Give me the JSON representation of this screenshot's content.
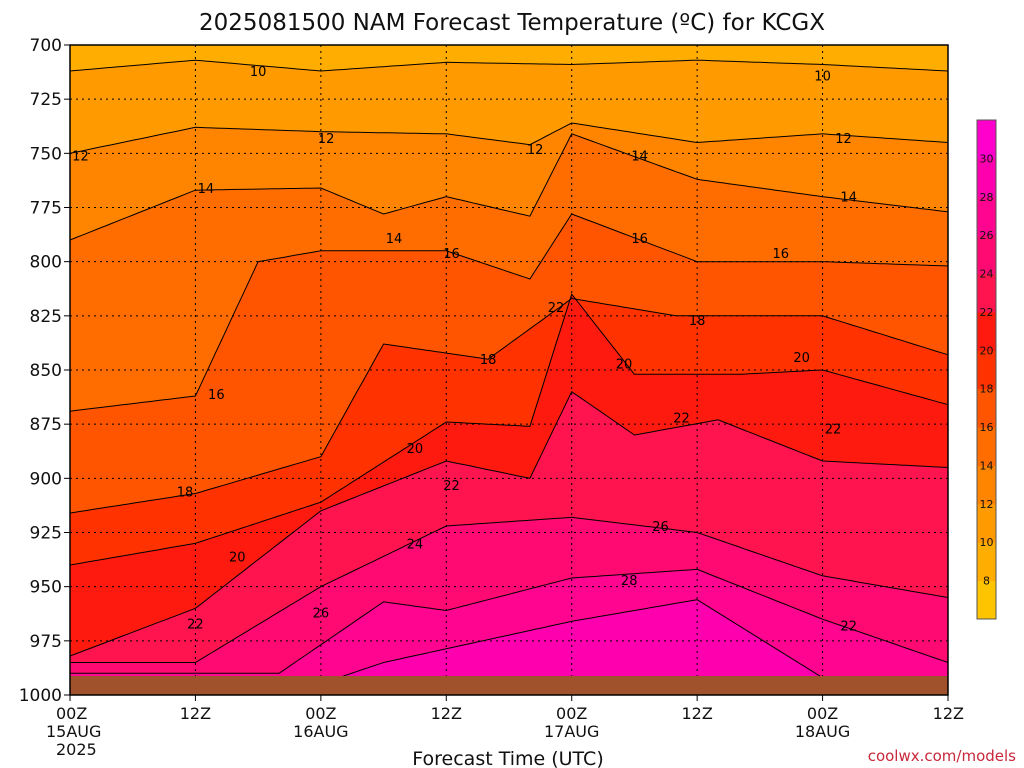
{
  "chart_data": {
    "type": "heatmap",
    "title": "2025081500 NAM Forecast Temperature (ºC) for KCGX",
    "xlabel": "Forecast Time (UTC)",
    "ylabel": "",
    "credit": "coolwx.com/models",
    "y_ticks": [
      "700",
      "725",
      "750",
      "775",
      "800",
      "825",
      "850",
      "875",
      "900",
      "925",
      "950",
      "975",
      "1000"
    ],
    "y_values": [
      700,
      725,
      750,
      775,
      800,
      825,
      850,
      875,
      900,
      925,
      950,
      975,
      1000
    ],
    "ylim": [
      1000,
      700
    ],
    "x_ticks": [
      {
        "time": "00Z",
        "date": "15AUG",
        "year": "2025"
      },
      {
        "time": "12Z",
        "date": "",
        "year": ""
      },
      {
        "time": "00Z",
        "date": "16AUG",
        "year": ""
      },
      {
        "time": "12Z",
        "date": "",
        "year": ""
      },
      {
        "time": "00Z",
        "date": "17AUG",
        "year": ""
      },
      {
        "time": "12Z",
        "date": "",
        "year": ""
      },
      {
        "time": "00Z",
        "date": "18AUG",
        "year": ""
      },
      {
        "time": "12Z",
        "date": "",
        "year": ""
      }
    ],
    "x_hours": [
      0,
      12,
      24,
      36,
      48,
      60,
      72,
      84
    ],
    "xlim": [
      0,
      84
    ],
    "colorbar": {
      "levels": [
        6,
        8,
        10,
        12,
        14,
        16,
        18,
        20,
        22,
        24,
        26,
        28,
        30,
        32
      ],
      "tick_labels": [
        "8",
        "10",
        "12",
        "14",
        "16",
        "18",
        "20",
        "22",
        "24",
        "26",
        "28",
        "30"
      ],
      "colors": [
        "#ffc400",
        "#ffad00",
        "#ff9a00",
        "#ff8400",
        "#ff6c00",
        "#ff5500",
        "#ff3200",
        "#ff1a10",
        "#ff1450",
        "#ff0a72",
        "#ff0590",
        "#ff00ae",
        "#ff00cc"
      ]
    },
    "grid": true,
    "series": [
      {
        "name": "10",
        "values": [
          [
            0,
            712
          ],
          [
            12,
            707
          ],
          [
            24,
            712
          ],
          [
            36,
            708
          ],
          [
            48,
            709
          ],
          [
            60,
            707
          ],
          [
            72,
            709
          ],
          [
            84,
            712
          ]
        ]
      },
      {
        "name": "12",
        "values": [
          [
            0,
            750
          ],
          [
            12,
            738
          ],
          [
            24,
            740
          ],
          [
            36,
            741
          ],
          [
            44,
            746
          ],
          [
            48,
            736
          ],
          [
            60,
            745
          ],
          [
            72,
            741
          ],
          [
            84,
            745
          ]
        ]
      },
      {
        "name": "14",
        "values": [
          [
            0,
            790
          ],
          [
            12,
            767
          ],
          [
            24,
            766
          ],
          [
            30,
            778
          ],
          [
            36,
            770
          ],
          [
            44,
            779
          ],
          [
            48,
            741
          ],
          [
            60,
            762
          ],
          [
            72,
            770
          ],
          [
            84,
            777
          ]
        ]
      },
      {
        "name": "16",
        "values": [
          [
            0,
            869
          ],
          [
            12,
            862
          ],
          [
            18,
            800
          ],
          [
            24,
            795
          ],
          [
            36,
            795
          ],
          [
            44,
            808
          ],
          [
            48,
            778
          ],
          [
            60,
            800
          ],
          [
            72,
            800
          ],
          [
            84,
            802
          ]
        ]
      },
      {
        "name": "18",
        "values": [
          [
            0,
            916
          ],
          [
            12,
            907
          ],
          [
            24,
            890
          ],
          [
            30,
            838
          ],
          [
            40,
            845
          ],
          [
            48,
            817
          ],
          [
            58,
            825
          ],
          [
            72,
            825
          ],
          [
            84,
            843
          ]
        ]
      },
      {
        "name": "20",
        "values": [
          [
            0,
            940
          ],
          [
            12,
            930
          ],
          [
            24,
            911
          ],
          [
            36,
            874
          ],
          [
            44,
            876
          ],
          [
            48,
            815
          ],
          [
            54,
            852
          ],
          [
            64,
            852
          ],
          [
            72,
            850
          ],
          [
            84,
            866
          ]
        ]
      },
      {
        "name": "22",
        "values": [
          [
            0,
            982
          ],
          [
            12,
            960
          ],
          [
            24,
            915
          ],
          [
            36,
            892
          ],
          [
            44,
            900
          ],
          [
            48,
            860
          ],
          [
            54,
            880
          ],
          [
            62,
            873
          ],
          [
            72,
            892
          ],
          [
            84,
            895
          ]
        ]
      },
      {
        "name": "24",
        "values": [
          [
            12,
            985
          ],
          [
            24,
            950
          ],
          [
            36,
            922
          ],
          [
            48,
            918
          ],
          [
            60,
            925
          ],
          [
            72,
            945
          ],
          [
            84,
            955
          ]
        ]
      },
      {
        "name": "26",
        "values": [
          [
            20,
            990
          ],
          [
            30,
            957
          ],
          [
            36,
            961
          ],
          [
            48,
            946
          ],
          [
            60,
            942
          ],
          [
            72,
            965
          ],
          [
            84,
            985
          ]
        ]
      },
      {
        "name": "28",
        "values": [
          [
            22,
            998
          ],
          [
            30,
            985
          ],
          [
            48,
            966
          ],
          [
            60,
            956
          ],
          [
            72,
            992
          ]
        ]
      }
    ],
    "contour_labels": [
      {
        "text": "10",
        "x": 18.0,
        "y": 712
      },
      {
        "text": "10",
        "x": 72.0,
        "y": 714
      },
      {
        "text": "12",
        "x": 1.0,
        "y": 751
      },
      {
        "text": "12",
        "x": 24.5,
        "y": 743
      },
      {
        "text": "12",
        "x": 44.5,
        "y": 748
      },
      {
        "text": "12",
        "x": 74.0,
        "y": 743
      },
      {
        "text": "14",
        "x": 13.0,
        "y": 766
      },
      {
        "text": "14",
        "x": 31.0,
        "y": 789
      },
      {
        "text": "14",
        "x": 54.5,
        "y": 751
      },
      {
        "text": "14",
        "x": 74.5,
        "y": 770
      },
      {
        "text": "16",
        "x": 14.0,
        "y": 861
      },
      {
        "text": "16",
        "x": 36.5,
        "y": 796
      },
      {
        "text": "16",
        "x": 54.5,
        "y": 789
      },
      {
        "text": "16",
        "x": 68.0,
        "y": 796
      },
      {
        "text": "18",
        "x": 11.0,
        "y": 906
      },
      {
        "text": "18",
        "x": 40.0,
        "y": 845
      },
      {
        "text": "18",
        "x": 60.0,
        "y": 827
      },
      {
        "text": "20",
        "x": 16.0,
        "y": 936
      },
      {
        "text": "20",
        "x": 33.0,
        "y": 886
      },
      {
        "text": "20",
        "x": 53.0,
        "y": 847
      },
      {
        "text": "20",
        "x": 70.0,
        "y": 844
      },
      {
        "text": "22",
        "x": 12.0,
        "y": 967
      },
      {
        "text": "22",
        "x": 36.5,
        "y": 903
      },
      {
        "text": "22",
        "x": 46.5,
        "y": 821
      },
      {
        "text": "22",
        "x": 58.5,
        "y": 872
      },
      {
        "text": "22",
        "x": 73.0,
        "y": 877
      },
      {
        "text": "22",
        "x": 74.5,
        "y": 968
      },
      {
        "text": "24",
        "x": 33.0,
        "y": 930
      },
      {
        "text": "26",
        "x": 24.0,
        "y": 962
      },
      {
        "text": "26",
        "x": 56.5,
        "y": 922
      },
      {
        "text": "28",
        "x": 53.5,
        "y": 947
      }
    ]
  }
}
